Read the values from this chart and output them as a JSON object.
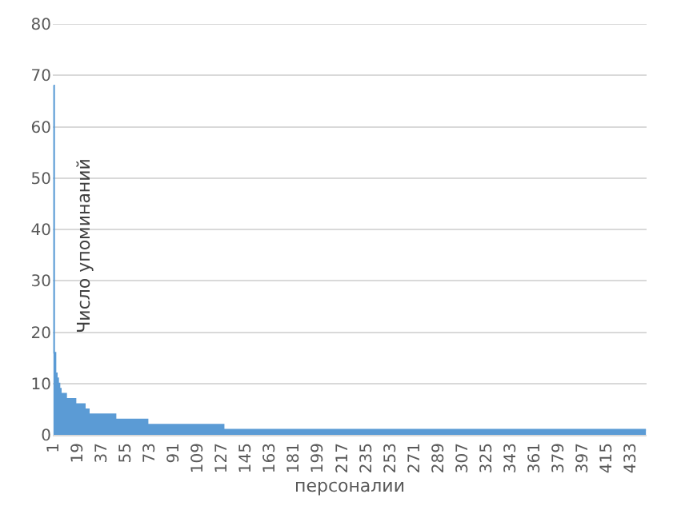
{
  "chart_data": {
    "type": "area",
    "xlabel": "персоналии",
    "ylabel": "Число упоминаний",
    "color": "#5b9bd5",
    "grid": "y",
    "ylim": [
      0,
      80
    ],
    "yticks": [
      0,
      10,
      20,
      30,
      40,
      50,
      60,
      70,
      80
    ],
    "xlim": [
      0.5,
      445.5
    ],
    "xticks": [
      1,
      19,
      37,
      55,
      73,
      91,
      109,
      127,
      145,
      163,
      181,
      199,
      217,
      235,
      253,
      271,
      289,
      307,
      325,
      343,
      361,
      379,
      397,
      415,
      433
    ],
    "x": [
      1,
      2,
      3,
      4,
      5,
      6,
      7,
      8,
      9,
      10,
      11,
      12,
      13,
      14,
      15,
      16,
      17,
      18,
      19,
      20,
      21,
      22,
      23,
      24,
      25,
      26,
      27,
      28,
      29,
      30,
      31,
      32,
      33,
      34,
      35,
      36,
      37,
      38,
      39,
      40,
      41,
      42,
      43,
      44,
      45,
      46,
      47,
      48,
      49,
      50,
      51,
      52,
      53,
      54,
      55,
      56,
      57,
      58,
      59,
      60,
      61,
      62,
      63,
      64,
      65,
      66,
      67,
      68,
      69,
      70,
      71,
      72,
      73,
      74,
      75,
      76,
      77,
      78,
      79,
      80,
      81,
      82,
      83,
      84,
      85,
      86,
      87,
      88,
      89,
      90,
      91,
      92,
      93,
      94,
      95,
      96,
      97,
      98,
      99,
      100,
      101,
      102,
      103,
      104,
      105,
      106,
      107,
      108,
      109,
      110,
      111,
      112,
      113,
      114,
      115,
      116,
      117,
      118,
      119,
      120,
      121,
      122,
      123,
      124,
      125,
      126,
      127,
      128,
      129,
      130,
      131,
      132,
      133,
      134,
      135,
      136,
      137,
      138,
      139,
      140,
      141,
      142,
      143,
      144,
      145,
      146,
      147,
      148,
      149,
      150,
      151,
      152,
      153,
      154,
      155,
      156,
      157,
      158,
      159,
      160,
      161,
      162,
      163,
      164,
      165,
      166,
      167,
      168,
      169,
      170,
      171,
      172,
      173,
      174,
      175,
      176,
      177,
      178,
      179,
      180,
      181,
      182,
      183,
      184,
      185,
      186,
      187,
      188,
      189,
      190,
      191,
      192,
      193,
      194,
      195,
      196,
      197,
      198,
      199,
      200,
      201,
      202,
      203,
      204,
      205,
      206,
      207,
      208,
      209,
      210,
      211,
      212,
      213,
      214,
      215,
      216,
      217,
      218,
      219,
      220,
      221,
      222,
      223,
      224,
      225,
      226,
      227,
      228,
      229,
      230,
      231,
      232,
      233,
      234,
      235,
      236,
      237,
      238,
      239,
      240,
      241,
      242,
      243,
      244,
      245,
      246,
      247,
      248,
      249,
      250,
      251,
      252,
      253,
      254,
      255,
      256,
      257,
      258,
      259,
      260,
      261,
      262,
      263,
      264,
      265,
      266,
      267,
      268,
      269,
      270,
      271,
      272,
      273,
      274,
      275,
      276,
      277,
      278,
      279,
      280,
      281,
      282,
      283,
      284,
      285,
      286,
      287,
      288,
      289,
      290,
      291,
      292,
      293,
      294,
      295,
      296,
      297,
      298,
      299,
      300,
      301,
      302,
      303,
      304,
      305,
      306,
      307,
      308,
      309,
      310,
      311,
      312,
      313,
      314,
      315,
      316,
      317,
      318,
      319,
      320,
      321,
      322,
      323,
      324,
      325,
      326,
      327,
      328,
      329,
      330,
      331,
      332,
      333,
      334,
      335,
      336,
      337,
      338,
      339,
      340,
      341,
      342,
      343,
      344,
      345,
      346,
      347,
      348,
      349,
      350,
      351,
      352,
      353,
      354,
      355,
      356,
      357,
      358,
      359,
      360,
      361,
      362,
      363,
      364,
      365,
      366,
      367,
      368,
      369,
      370,
      371,
      372,
      373,
      374,
      375,
      376,
      377,
      378,
      379,
      380,
      381,
      382,
      383,
      384,
      385,
      386,
      387,
      388,
      389,
      390,
      391,
      392,
      393,
      394,
      395,
      396,
      397,
      398,
      399,
      400,
      401,
      402,
      403,
      404,
      405,
      406,
      407,
      408,
      409,
      410,
      411,
      412,
      413,
      414,
      415,
      416,
      417,
      418,
      419,
      420,
      421,
      422,
      423,
      424,
      425,
      426,
      427,
      428,
      429,
      430,
      431,
      432,
      433,
      434,
      435,
      436,
      437,
      438,
      439,
      440,
      441,
      442,
      443,
      444,
      445
    ],
    "values": [
      68,
      16,
      12,
      11,
      10,
      9,
      8,
      8,
      8,
      8,
      7,
      7,
      7,
      7,
      7,
      7,
      7,
      6,
      6,
      6,
      6,
      6,
      6,
      6,
      5,
      5,
      5,
      4,
      4,
      4,
      4,
      4,
      4,
      4,
      4,
      4,
      4,
      4,
      4,
      4,
      4,
      4,
      4,
      4,
      4,
      4,
      4,
      3,
      3,
      3,
      3,
      3,
      3,
      3,
      3,
      3,
      3,
      3,
      3,
      3,
      3,
      3,
      3,
      3,
      3,
      3,
      3,
      3,
      3,
      3,
      3,
      2,
      2,
      2,
      2,
      2,
      2,
      2,
      2,
      2,
      2,
      2,
      2,
      2,
      2,
      2,
      2,
      2,
      2,
      2,
      2,
      2,
      2,
      2,
      2,
      2,
      2,
      2,
      2,
      2,
      2,
      2,
      2,
      2,
      2,
      2,
      2,
      2,
      2,
      2,
      2,
      2,
      2,
      2,
      2,
      2,
      2,
      2,
      2,
      2,
      2,
      2,
      2,
      2,
      2,
      2,
      2,
      2,
      1,
      1,
      1,
      1,
      1,
      1,
      1,
      1,
      1,
      1,
      1,
      1,
      1,
      1,
      1,
      1,
      1,
      1,
      1,
      1,
      1,
      1,
      1,
      1,
      1,
      1,
      1,
      1,
      1,
      1,
      1,
      1,
      1,
      1,
      1,
      1,
      1,
      1,
      1,
      1,
      1,
      1,
      1,
      1,
      1,
      1,
      1,
      1,
      1,
      1,
      1,
      1,
      1,
      1,
      1,
      1,
      1,
      1,
      1,
      1,
      1,
      1,
      1,
      1,
      1,
      1,
      1,
      1,
      1,
      1,
      1,
      1,
      1,
      1,
      1,
      1,
      1,
      1,
      1,
      1,
      1,
      1,
      1,
      1,
      1,
      1,
      1,
      1,
      1,
      1,
      1,
      1,
      1,
      1,
      1,
      1,
      1,
      1,
      1,
      1,
      1,
      1,
      1,
      1,
      1,
      1,
      1,
      1,
      1,
      1,
      1,
      1,
      1,
      1,
      1,
      1,
      1,
      1,
      1,
      1,
      1,
      1,
      1,
      1,
      1,
      1,
      1,
      1,
      1,
      1,
      1,
      1,
      1,
      1,
      1,
      1,
      1,
      1,
      1,
      1,
      1,
      1,
      1,
      1,
      1,
      1,
      1,
      1,
      1,
      1,
      1,
      1,
      1,
      1,
      1,
      1,
      1,
      1,
      1,
      1,
      1,
      1,
      1,
      1,
      1,
      1,
      1,
      1,
      1,
      1,
      1,
      1,
      1,
      1,
      1,
      1,
      1,
      1,
      1,
      1,
      1,
      1,
      1,
      1,
      1,
      1,
      1,
      1,
      1,
      1,
      1,
      1,
      1,
      1,
      1,
      1,
      1,
      1,
      1,
      1,
      1,
      1,
      1,
      1,
      1,
      1,
      1,
      1,
      1,
      1,
      1,
      1,
      1,
      1,
      1,
      1,
      1,
      1,
      1,
      1,
      1,
      1,
      1,
      1,
      1,
      1,
      1,
      1,
      1,
      1,
      1,
      1,
      1,
      1,
      1,
      1,
      1,
      1,
      1,
      1,
      1,
      1,
      1,
      1,
      1,
      1,
      1,
      1,
      1,
      1,
      1,
      1,
      1,
      1,
      1,
      1,
      1,
      1,
      1,
      1,
      1,
      1,
      1,
      1,
      1,
      1,
      1,
      1,
      1,
      1,
      1,
      1,
      1,
      1,
      1,
      1,
      1,
      1,
      1,
      1,
      1,
      1,
      1,
      1,
      1,
      1,
      1,
      1,
      1,
      1,
      1,
      1,
      1,
      1,
      1,
      1,
      1,
      1,
      1,
      1,
      1,
      1,
      1,
      1,
      1,
      1,
      1,
      1,
      1,
      1,
      1,
      1,
      1,
      1,
      1,
      1,
      1
    ]
  }
}
